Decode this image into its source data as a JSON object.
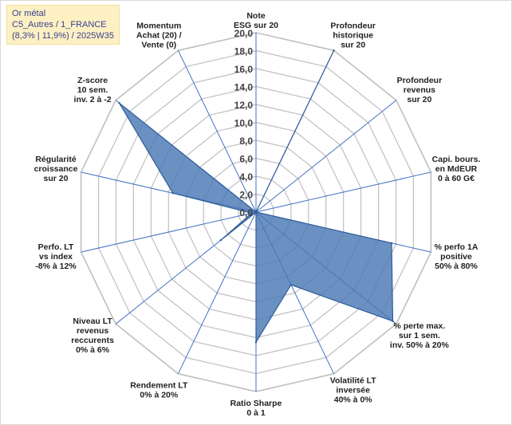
{
  "info": {
    "lines": [
      "Or métal",
      "C5_Autres / 1_FRANCE",
      "(8,3% | 11,9%) / 2025W35"
    ]
  },
  "chart_data": {
    "type": "radar",
    "title": "",
    "r_max": 20,
    "ticks": [
      "0,0",
      "2,0",
      "4,0",
      "6,0",
      "8,0",
      "10,0",
      "12,0",
      "14,0",
      "16,0",
      "18,0",
      "20,0"
    ],
    "axes": [
      {
        "label": [
          "Note",
          "ESG sur 20"
        ],
        "value": 0
      },
      {
        "label": [
          "Profondeur",
          "historique",
          "sur 20"
        ],
        "value": 20
      },
      {
        "label": [
          "Profondeur",
          "revenus",
          "sur 20"
        ],
        "value": 0
      },
      {
        "label": [
          "Capi. bours.",
          "en MdEUR",
          "0 à 60 G€"
        ],
        "value": 0
      },
      {
        "label": [
          "% perfo 1A",
          "positive",
          "50% à 80%"
        ],
        "value": 15.5
      },
      {
        "label": [
          "% perte max.",
          "sur 1 sem.",
          "inv. 50% à 20%"
        ],
        "value": 19.5
      },
      {
        "label": [
          "Volatilité LT",
          "inversée",
          "40% à 0%"
        ],
        "value": 9
      },
      {
        "label": [
          "Ratio Sharpe",
          "0 à 1"
        ],
        "value": 14.5
      },
      {
        "label": [
          "Rendement LT",
          "0% à 20%"
        ],
        "value": 0
      },
      {
        "label": [
          "Niveau LT",
          "revenus",
          "reccurents",
          "0% à 6%"
        ],
        "value": 5
      },
      {
        "label": [
          "Perfo. LT",
          "vs index",
          "-8% à 12%"
        ],
        "value": 0.5
      },
      {
        "label": [
          "Régularité",
          "croissance",
          "sur 20"
        ],
        "value": 9.5
      },
      {
        "label": [
          "Z-score",
          "10 sem.",
          "inv. 2 à -2"
        ],
        "value": 19.5
      },
      {
        "label": [
          "Momentum",
          "Achat (20) /",
          "Vente (0)"
        ],
        "value": 0
      }
    ],
    "colors": {
      "fill": "#4a78b5",
      "stroke": "#2f5d9a",
      "grid": "#bfbfbf",
      "spoke": "#4472c4"
    }
  }
}
